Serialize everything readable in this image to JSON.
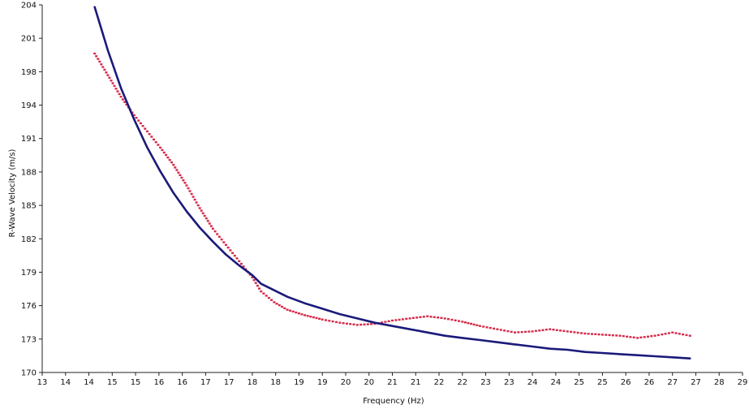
{
  "chart_data": {
    "type": "line",
    "title": "",
    "xlabel": "Frequency (Hz)",
    "ylabel": "R-Wave Velocity (m/s)",
    "xlim": [
      13,
      29
    ],
    "ylim": [
      170,
      204
    ],
    "x_ticks": [
      "13",
      "14",
      "14",
      "15",
      "15",
      "16",
      "16",
      "17",
      "17",
      "18",
      "18",
      "19",
      "19",
      "20",
      "20",
      "21",
      "21",
      "22",
      "22",
      "23",
      "23",
      "24",
      "24",
      "25",
      "25",
      "26",
      "26",
      "27",
      "27",
      "28",
      "29"
    ],
    "y_ticks": [
      "170",
      "173",
      "176",
      "179",
      "182",
      "185",
      "188",
      "191",
      "194",
      "198",
      "201",
      "204"
    ],
    "grid": false,
    "legend": "none",
    "series": [
      {
        "color": "#d42a4a",
        "style": "dotted",
        "x": [
          14.2,
          14.5,
          14.8,
          15.1,
          15.4,
          15.7,
          16.0,
          16.3,
          16.6,
          16.9,
          17.2,
          17.5,
          17.8,
          18.0,
          18.3,
          18.6,
          19.0,
          19.4,
          19.8,
          20.2,
          20.6,
          21.0,
          21.4,
          21.8,
          22.2,
          22.6,
          23.0,
          23.4,
          23.8,
          24.2,
          24.6,
          25.0,
          25.4,
          25.8,
          26.2,
          26.6,
          27.0,
          27.4,
          27.8
        ],
        "values": [
          199.5,
          197.5,
          195.5,
          193.8,
          192.3,
          190.8,
          189.2,
          187.3,
          185.2,
          183.3,
          181.8,
          180.3,
          178.8,
          177.5,
          176.5,
          175.8,
          175.3,
          174.9,
          174.6,
          174.4,
          174.5,
          174.8,
          175.0,
          175.2,
          175.0,
          174.7,
          174.3,
          174.0,
          173.7,
          173.8,
          174.0,
          173.8,
          173.6,
          173.5,
          173.4,
          173.2,
          173.4,
          173.7,
          173.4
        ]
      },
      {
        "color": "#1a1a7a",
        "style": "solid",
        "x": [
          14.2,
          14.5,
          14.8,
          15.1,
          15.4,
          15.7,
          16.0,
          16.3,
          16.6,
          16.9,
          17.2,
          17.5,
          17.8,
          18.0,
          18.3,
          18.6,
          19.0,
          19.4,
          19.8,
          20.2,
          20.6,
          21.0,
          21.4,
          21.8,
          22.2,
          22.6,
          23.0,
          23.4,
          23.8,
          24.2,
          24.6,
          25.0,
          25.4,
          25.8,
          26.2,
          26.6,
          27.0,
          27.4,
          27.8
        ],
        "values": [
          203.8,
          199.8,
          196.3,
          193.4,
          190.8,
          188.6,
          186.6,
          184.9,
          183.4,
          182.1,
          180.9,
          179.9,
          179.0,
          178.2,
          177.6,
          177.0,
          176.4,
          175.9,
          175.4,
          175.0,
          174.6,
          174.3,
          174.0,
          173.7,
          173.4,
          173.2,
          173.0,
          172.8,
          172.6,
          172.4,
          172.2,
          172.1,
          171.9,
          171.8,
          171.7,
          171.6,
          171.5,
          171.4,
          171.3
        ]
      }
    ]
  }
}
